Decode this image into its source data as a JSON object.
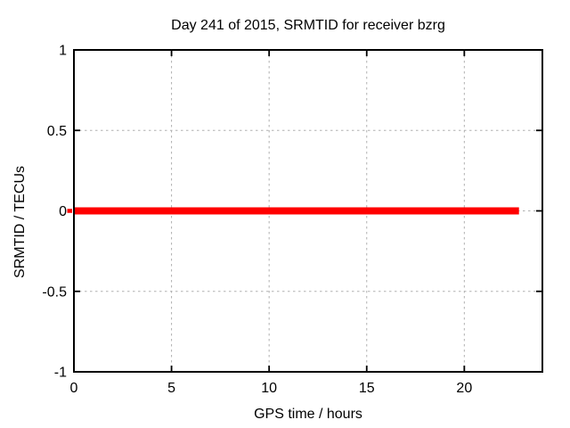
{
  "chart_data": {
    "type": "line",
    "title": "Day 241 of 2015, SRMTID for receiver bzrg",
    "xlabel": "GPS time / hours",
    "ylabel": "SRMTID / TECUs",
    "xlim": [
      0,
      24
    ],
    "ylim": [
      -1,
      1
    ],
    "xticks": [
      0,
      5,
      10,
      15,
      20
    ],
    "xtick_labels": [
      "0",
      "5",
      "10",
      "15",
      "20"
    ],
    "yticks": [
      1,
      0.5,
      0,
      -0.5,
      -1
    ],
    "ytick_labels": [
      "1",
      "0.5",
      "0",
      "-0.5",
      "-1"
    ],
    "grid": true,
    "legend": "none",
    "series": [
      {
        "name": "SRMTID",
        "color": "#ff0000",
        "style": "thick solid horizontal line",
        "y_value": 0,
        "x_start": 0,
        "x_end": 22.8,
        "points": [
          [
            0,
            0
          ],
          [
            22.8,
            0
          ]
        ]
      }
    ],
    "colors": {
      "background": "#ffffff",
      "border": "#000000",
      "grid": "#b0b0b0",
      "text": "#000000",
      "series": "#ff0000"
    }
  }
}
